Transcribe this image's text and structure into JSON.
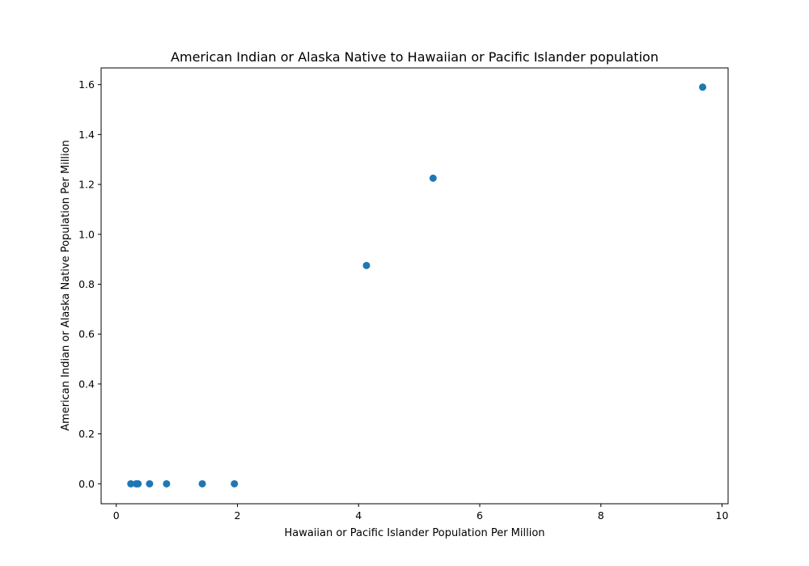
{
  "chart_data": {
    "type": "scatter",
    "title": "American Indian or Alaska Native to Hawaiian or Pacific Islander population",
    "xlabel": "Hawaiian or Pacific Islander Population Per Million",
    "ylabel": "American Indian or Alaska Native Population Per Million",
    "xlim": [
      -0.25,
      10.1
    ],
    "ylim": [
      -0.08,
      1.667
    ],
    "xticks": [
      0,
      2,
      4,
      6,
      8,
      10
    ],
    "xtick_labels": [
      "0",
      "2",
      "4",
      "6",
      "8",
      "10"
    ],
    "yticks": [
      0.0,
      0.2,
      0.4,
      0.6,
      0.8,
      1.0,
      1.2,
      1.4,
      1.6
    ],
    "ytick_labels": [
      "0.0",
      "0.2",
      "0.4",
      "0.6",
      "0.8",
      "1.0",
      "1.2",
      "1.4",
      "1.6"
    ],
    "grid": false,
    "marker_color": "#1f77b4",
    "points": [
      {
        "x": 0.24,
        "y": 0.0
      },
      {
        "x": 0.33,
        "y": 0.0
      },
      {
        "x": 0.36,
        "y": 0.0
      },
      {
        "x": 0.55,
        "y": 0.0
      },
      {
        "x": 0.83,
        "y": 0.0
      },
      {
        "x": 1.42,
        "y": 0.0
      },
      {
        "x": 1.95,
        "y": 0.0
      },
      {
        "x": 4.13,
        "y": 0.875
      },
      {
        "x": 5.23,
        "y": 1.225
      },
      {
        "x": 9.68,
        "y": 1.59
      }
    ]
  }
}
